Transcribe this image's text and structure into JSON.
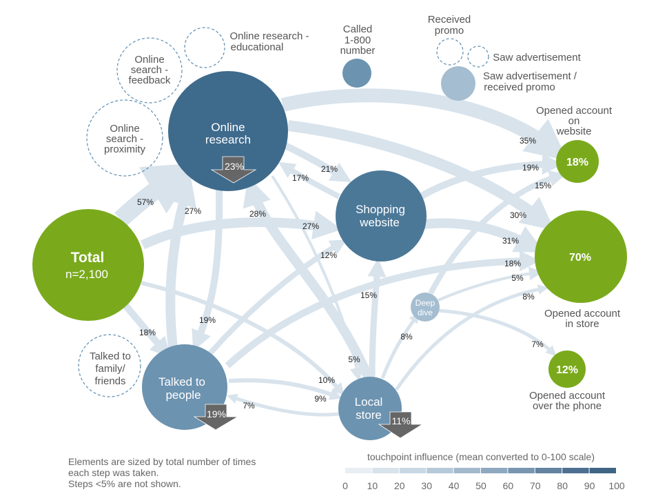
{
  "colors": {
    "green": "#7aaa1c",
    "node_dark": "#3e6a8c",
    "node_mid": "#4c7898",
    "node_light": "#6c93b0",
    "node_pale": "#a5bdd0",
    "flow": "#d8e3ec",
    "dashed": "#5b8cb0",
    "arrow_badge": "#666666",
    "legend": [
      "#e8eef3",
      "#d8e3ec",
      "#c8d7e3",
      "#b6c9d8",
      "#a3bacd",
      "#8ea9c0",
      "#7896b0",
      "#6383a1",
      "#4d7092",
      "#3f6585"
    ]
  },
  "nodes": {
    "total": {
      "title": "Total",
      "subtitle": "n=2,100"
    },
    "online_research": {
      "line1": "Online",
      "line2": "research",
      "badge": "23%"
    },
    "shopping_website": {
      "line1": "Shopping",
      "line2": "website"
    },
    "talked_people": {
      "line1": "Talked to",
      "line2": "people",
      "badge": "19%"
    },
    "local_store": {
      "line1": "Local",
      "line2": "store",
      "badge": "11%"
    },
    "deep_dive": {
      "line1": "Deep",
      "line2": "dive"
    },
    "opened_website": {
      "value": "18%",
      "label": [
        "Opened account",
        "on",
        "website"
      ]
    },
    "opened_store": {
      "value": "70%",
      "label": [
        "Opened account",
        "in store"
      ]
    },
    "opened_phone": {
      "value": "12%",
      "label": [
        "Opened account",
        "over the phone"
      ]
    },
    "called_800": {
      "label": [
        "Called",
        "1-800",
        "number"
      ]
    },
    "received_promo": {
      "label": [
        "Received",
        "promo"
      ]
    },
    "saw_ad": {
      "label": "Saw advertisement"
    },
    "saw_ad_promo": {
      "label": [
        "Saw advertisement /",
        "received promo"
      ]
    },
    "online_educational": {
      "label": [
        "Online research -",
        "educational"
      ]
    },
    "online_feedback": {
      "label": [
        "Online",
        "search -",
        "feedback"
      ]
    },
    "online_proximity": {
      "label": [
        "Online",
        "search -",
        "proximity"
      ]
    },
    "talked_family": {
      "label": [
        "Talked to",
        "family/",
        "friends"
      ]
    }
  },
  "flow_labels": {
    "total_online": "57%",
    "talked_online": "27%",
    "store_online": "28%",
    "online_talked": "19%",
    "total_talked": "18%",
    "online_shop": "21%",
    "shop_online": "17%",
    "total_shop": "27%",
    "talked_shop": "12%",
    "store_shop": "15%",
    "online_store": "5%",
    "talked_store": "10%",
    "store_talked": "7%",
    "total_store": "9%",
    "store_deep": "8%",
    "deep_phone": "7%",
    "online_web": "35%",
    "shop_web": "19%",
    "deep_web": "15%",
    "online_instore": "30%",
    "shop_instore": "31%",
    "talked_instore": "18%",
    "deep_instore": "5%",
    "store_instore": "8%"
  },
  "legend": {
    "title": "touchpoint influence (mean converted to 0-100 scale)",
    "ticks": [
      "0",
      "10",
      "20",
      "30",
      "40",
      "50",
      "60",
      "70",
      "80",
      "90",
      "100"
    ]
  },
  "footnote": {
    "line1": "Elements are sized by total number of times",
    "line2": "each step was taken.",
    "line3": "Steps <5% are not shown."
  }
}
